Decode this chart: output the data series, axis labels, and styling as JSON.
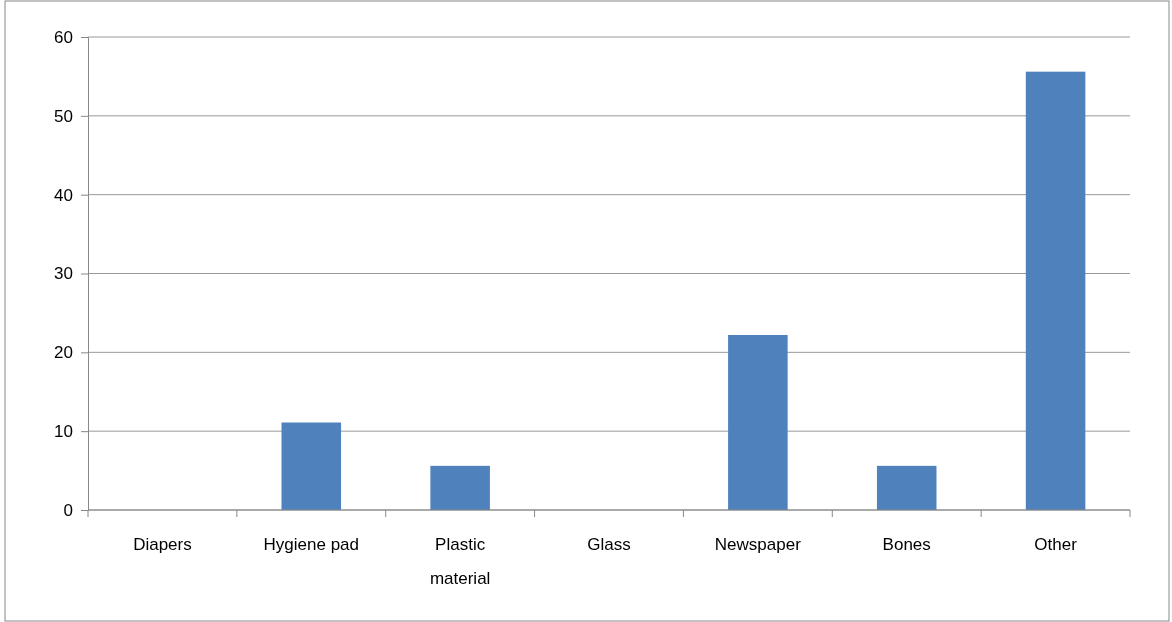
{
  "chart_data": {
    "type": "bar",
    "categories": [
      "Diapers",
      "Hygiene pad",
      "Plastic material",
      "Glass",
      "Newspaper",
      "Bones",
      "Other"
    ],
    "values": [
      0,
      11.1,
      5.6,
      0,
      22.2,
      5.6,
      55.6
    ],
    "color": "#4f81bd",
    "ylim": [
      0,
      60
    ],
    "yticks": [
      0,
      10,
      20,
      30,
      40,
      50,
      60
    ],
    "grid": "y"
  }
}
